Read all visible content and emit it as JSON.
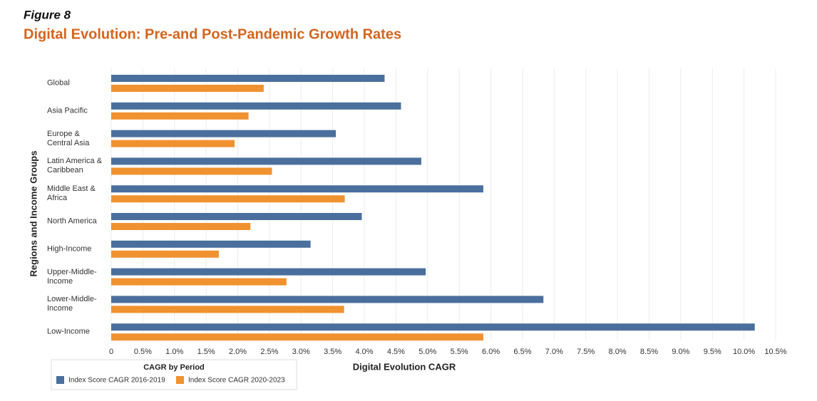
{
  "chart_data": {
    "type": "hbar",
    "figure_label": "Figure 8",
    "title": "Digital Evolution: Pre-and Post-Pandemic Growth Rates",
    "x_label": "Digital Evolution CAGR",
    "y_label": "Regions and Income Groups",
    "legend_title": "CAGR by Period",
    "categories": [
      "Global",
      "Asia Pacific",
      "Europe & Central Asia",
      "Latin America & Caribbean",
      "Middle East & Africa",
      "North America",
      "High-Income",
      "Upper-Middle-Income",
      "Lower-Middle-Income",
      "Low-Income"
    ],
    "series": [
      {
        "name": "Index Score CAGR 2016-2019",
        "color": "#4a6f9c",
        "values": [
          4.32,
          4.58,
          3.55,
          4.9,
          5.88,
          3.96,
          3.15,
          4.97,
          6.83,
          10.17
        ]
      },
      {
        "name": "Index Score CAGR 2020-2023",
        "color": "#f0922f",
        "values": [
          2.41,
          2.17,
          1.95,
          2.54,
          3.69,
          2.2,
          1.7,
          2.77,
          3.68,
          5.88
        ]
      }
    ],
    "xlim": [
      0,
      10.5
    ],
    "xticks": [
      0,
      {
        "value": 0.5,
        "label": "0.5%"
      },
      {
        "value": 1,
        "label": "1.0%"
      },
      {
        "value": 1.5,
        "label": "1.5%"
      },
      {
        "value": 2,
        "label": "2.0%"
      },
      {
        "value": 2.5,
        "label": "2.5%"
      },
      {
        "value": 3,
        "label": "3.0%"
      },
      {
        "value": 3.5,
        "label": "3.5%"
      },
      {
        "value": 4,
        "label": "4.0%"
      },
      {
        "value": 4.5,
        "label": "4.5%"
      },
      {
        "value": 5,
        "label": "5.0%"
      },
      {
        "value": 5.5,
        "label": "5.5%"
      },
      {
        "value": 6,
        "label": "6.0%"
      },
      {
        "value": 6.5,
        "label": "6.5%"
      },
      {
        "value": 7,
        "label": "7.0%"
      },
      {
        "value": 7.5,
        "label": "7.5%"
      },
      {
        "value": 8,
        "label": "8.0%"
      },
      {
        "value": 8.5,
        "label": "8.5%"
      },
      {
        "value": 9,
        "label": "9.0%"
      },
      {
        "value": 9.5,
        "label": "9.5%"
      },
      {
        "value": 10,
        "label": "10.0%"
      },
      {
        "value": 10.5,
        "label": "10.5%"
      }
    ],
    "grid": true
  }
}
